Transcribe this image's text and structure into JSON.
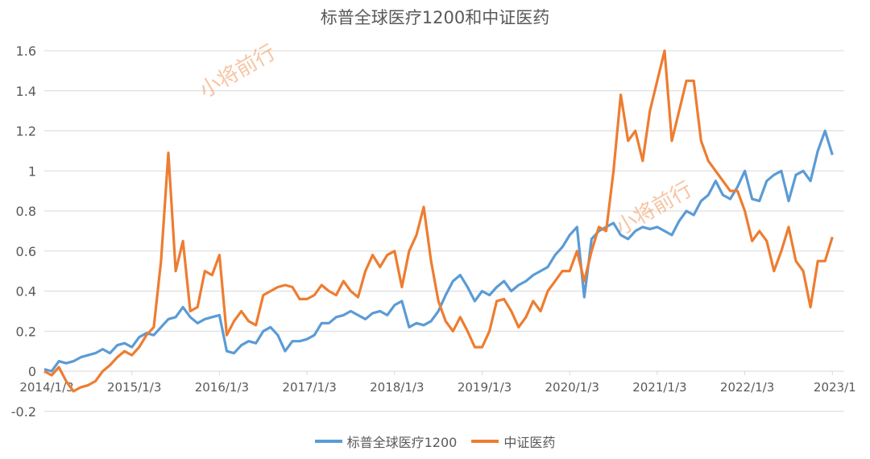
{
  "chart_data": {
    "type": "line",
    "title": "标普全球医疗1200和中证医药",
    "xlabel": "",
    "ylabel": "",
    "ylim": [
      -0.2,
      1.6
    ],
    "yticks": [
      "-0.2",
      "0",
      "0.2",
      "0.4",
      "0.6",
      "0.8",
      "1",
      "1.2",
      "1.4",
      "1.6"
    ],
    "xticks": [
      "2014/1/3",
      "2015/1/3",
      "2016/1/3",
      "2017/1/3",
      "2018/1/3",
      "2019/1/3",
      "2020/1/3",
      "2021/1/3",
      "2022/1/3",
      "2023/1"
    ],
    "grid": true,
    "legend_position": "bottom",
    "watermark": "小将前行",
    "x": [
      "2014-01",
      "2014-02",
      "2014-03",
      "2014-04",
      "2014-05",
      "2014-06",
      "2014-07",
      "2014-08",
      "2014-09",
      "2014-10",
      "2014-11",
      "2014-12",
      "2015-01",
      "2015-02",
      "2015-03",
      "2015-04",
      "2015-05",
      "2015-06",
      "2015-07",
      "2015-08",
      "2015-09",
      "2015-10",
      "2015-11",
      "2015-12",
      "2016-01",
      "2016-02",
      "2016-03",
      "2016-04",
      "2016-05",
      "2016-06",
      "2016-07",
      "2016-08",
      "2016-09",
      "2016-10",
      "2016-11",
      "2016-12",
      "2017-01",
      "2017-02",
      "2017-03",
      "2017-04",
      "2017-05",
      "2017-06",
      "2017-07",
      "2017-08",
      "2017-09",
      "2017-10",
      "2017-11",
      "2017-12",
      "2018-01",
      "2018-02",
      "2018-03",
      "2018-04",
      "2018-05",
      "2018-06",
      "2018-07",
      "2018-08",
      "2018-09",
      "2018-10",
      "2018-11",
      "2018-12",
      "2019-01",
      "2019-02",
      "2019-03",
      "2019-04",
      "2019-05",
      "2019-06",
      "2019-07",
      "2019-08",
      "2019-09",
      "2019-10",
      "2019-11",
      "2019-12",
      "2020-01",
      "2020-02",
      "2020-03",
      "2020-04",
      "2020-05",
      "2020-06",
      "2020-07",
      "2020-08",
      "2020-09",
      "2020-10",
      "2020-11",
      "2020-12",
      "2021-01",
      "2021-02",
      "2021-03",
      "2021-04",
      "2021-05",
      "2021-06",
      "2021-07",
      "2021-08",
      "2021-09",
      "2021-10",
      "2021-11",
      "2021-12",
      "2022-01",
      "2022-02",
      "2022-03",
      "2022-04",
      "2022-05",
      "2022-06",
      "2022-07",
      "2022-08",
      "2022-09",
      "2022-10",
      "2022-11",
      "2022-12",
      "2023-01"
    ],
    "series": [
      {
        "name": "标普全球医疗1200",
        "color": "#5b9bd5",
        "values": [
          0.01,
          0.0,
          0.05,
          0.04,
          0.05,
          0.07,
          0.08,
          0.09,
          0.11,
          0.09,
          0.13,
          0.14,
          0.12,
          0.17,
          0.19,
          0.18,
          0.22,
          0.26,
          0.27,
          0.32,
          0.27,
          0.24,
          0.26,
          0.27,
          0.28,
          0.1,
          0.09,
          0.13,
          0.15,
          0.14,
          0.2,
          0.22,
          0.18,
          0.1,
          0.15,
          0.15,
          0.16,
          0.18,
          0.24,
          0.24,
          0.27,
          0.28,
          0.3,
          0.28,
          0.26,
          0.29,
          0.3,
          0.28,
          0.33,
          0.35,
          0.22,
          0.24,
          0.23,
          0.25,
          0.3,
          0.38,
          0.45,
          0.48,
          0.42,
          0.35,
          0.4,
          0.38,
          0.42,
          0.45,
          0.4,
          0.43,
          0.45,
          0.48,
          0.5,
          0.52,
          0.58,
          0.62,
          0.68,
          0.72,
          0.37,
          0.66,
          0.7,
          0.72,
          0.74,
          0.68,
          0.66,
          0.7,
          0.72,
          0.71,
          0.72,
          0.7,
          0.68,
          0.75,
          0.8,
          0.78,
          0.85,
          0.88,
          0.95,
          0.88,
          0.86,
          0.92,
          1.0,
          0.86,
          0.85,
          0.95,
          0.98,
          1.0,
          0.85,
          0.98,
          1.0,
          0.95,
          1.1,
          1.2,
          1.08
        ]
      },
      {
        "name": "中证医药",
        "color": "#ed7d31",
        "values": [
          0.0,
          -0.02,
          0.02,
          -0.05,
          -0.1,
          -0.08,
          -0.07,
          -0.05,
          0.0,
          0.03,
          0.07,
          0.1,
          0.08,
          0.12,
          0.18,
          0.22,
          0.55,
          1.09,
          0.5,
          0.65,
          0.3,
          0.32,
          0.5,
          0.48,
          0.58,
          0.18,
          0.25,
          0.3,
          0.25,
          0.23,
          0.38,
          0.4,
          0.42,
          0.43,
          0.42,
          0.36,
          0.36,
          0.38,
          0.43,
          0.4,
          0.38,
          0.45,
          0.4,
          0.37,
          0.5,
          0.58,
          0.52,
          0.58,
          0.6,
          0.42,
          0.6,
          0.68,
          0.82,
          0.55,
          0.35,
          0.25,
          0.2,
          0.27,
          0.2,
          0.12,
          0.12,
          0.2,
          0.35,
          0.36,
          0.3,
          0.22,
          0.27,
          0.35,
          0.3,
          0.4,
          0.45,
          0.5,
          0.5,
          0.6,
          0.45,
          0.6,
          0.72,
          0.7,
          1.0,
          1.38,
          1.15,
          1.2,
          1.05,
          1.3,
          1.45,
          1.6,
          1.15,
          1.3,
          1.45,
          1.45,
          1.15,
          1.05,
          1.0,
          0.95,
          0.9,
          0.9,
          0.8,
          0.65,
          0.7,
          0.65,
          0.5,
          0.6,
          0.72,
          0.55,
          0.5,
          0.32,
          0.55,
          0.55,
          0.67
        ]
      }
    ]
  }
}
